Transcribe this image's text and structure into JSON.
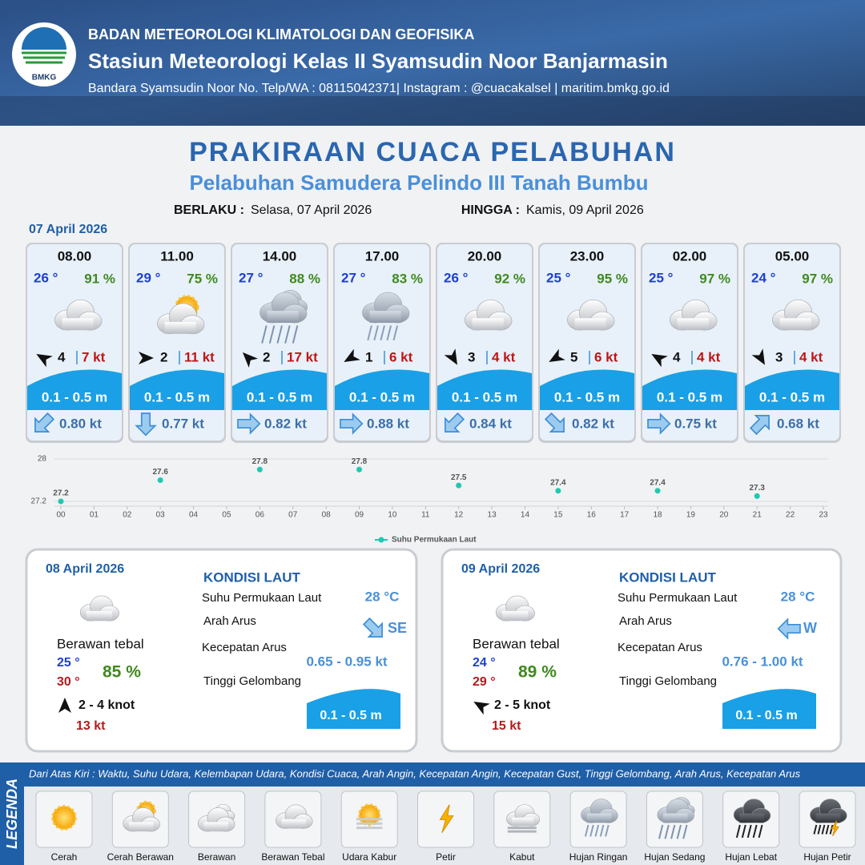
{
  "header": {
    "organization": "BADAN METEOROLOGI KLIMATOLOGI DAN GEOFISIKA",
    "station": "Stasiun Meteorologi Kelas II Syamsudin Noor Banjarmasin",
    "contact": "Bandara Syamsudin Noor No. Telp/WA : 08115042371| Instagram : @cuacakalsel | maritim.bmkg.go.id",
    "logo_text": "BMKG"
  },
  "title": "PRAKIRAAN CUACA PELABUHAN",
  "subtitle": "Pelabuhan Samudera Pelindo III Tanah Bumbu",
  "validity": {
    "from_label": "BERLAKU :",
    "from": "Selasa, 07 April 2026",
    "until_label": "HINGGA :",
    "until": "Kamis, 09 April 2026"
  },
  "day1_date": "07 April 2026",
  "forecasts": [
    {
      "time": "08.00",
      "temp": "26 °",
      "humidity": "91 %",
      "wind": "4",
      "gust": "7 kt",
      "wave": "0.1 - 0.5 m",
      "current": "0.80 kt"
    },
    {
      "time": "11.00",
      "temp": "29 °",
      "humidity": "75 %",
      "wind": "2",
      "gust": "11 kt",
      "wave": "0.1 - 0.5 m",
      "current": "0.77 kt"
    },
    {
      "time": "14.00",
      "temp": "27 °",
      "humidity": "88 %",
      "wind": "2",
      "gust": "17 kt",
      "wave": "0.1 - 0.5 m",
      "current": "0.82 kt"
    },
    {
      "time": "17.00",
      "temp": "27 °",
      "humidity": "83 %",
      "wind": "1",
      "gust": "6 kt",
      "wave": "0.1 - 0.5 m",
      "current": "0.88 kt"
    },
    {
      "time": "20.00",
      "temp": "26 °",
      "humidity": "92 %",
      "wind": "3",
      "gust": "4 kt",
      "wave": "0.1 - 0.5 m",
      "current": "0.84 kt"
    },
    {
      "time": "23.00",
      "temp": "25 °",
      "humidity": "95 %",
      "wind": "5",
      "gust": "6 kt",
      "wave": "0.1 - 0.5 m",
      "current": "0.82 kt"
    },
    {
      "time": "02.00",
      "temp": "25 °",
      "humidity": "97 %",
      "wind": "4",
      "gust": "4 kt",
      "wave": "0.1 - 0.5 m",
      "current": "0.75 kt"
    },
    {
      "time": "05.00",
      "temp": "24 °",
      "humidity": "97 %",
      "wind": "3",
      "gust": "4 kt",
      "wave": "0.1 - 0.5 m",
      "current": "0.68 kt"
    }
  ],
  "chart_data": {
    "type": "line",
    "x": [
      0,
      3,
      6,
      9,
      12,
      15,
      18,
      21
    ],
    "series": [
      {
        "name": "Suhu Permukaan Laut",
        "color": "#1fc9b0",
        "values": [
          27.2,
          27.6,
          27.8,
          27.8,
          27.5,
          27.4,
          27.4,
          27.3
        ]
      }
    ],
    "xlim": [
      0,
      23
    ],
    "ylim": [
      27.2,
      28
    ],
    "yticks": [
      27.2,
      28
    ],
    "xticks": [
      {
        "value": 0,
        "label": "00"
      },
      {
        "value": 1,
        "label": "01"
      },
      {
        "value": 2,
        "label": "02"
      },
      {
        "value": 3,
        "label": "03"
      },
      {
        "value": 4,
        "label": "04"
      },
      {
        "value": 5,
        "label": "05"
      },
      {
        "value": 6,
        "label": "06"
      },
      {
        "value": 7,
        "label": "07"
      },
      {
        "value": 8,
        "label": "08"
      },
      {
        "value": 9,
        "label": "09"
      },
      10,
      11,
      12,
      13,
      14,
      15,
      16,
      17,
      18,
      19,
      20,
      21,
      22,
      23
    ],
    "grid": true,
    "legend": "bottom"
  },
  "daily": [
    {
      "date": "08 April 2026",
      "condition": "Berawan tebal",
      "temp_min": "25 °",
      "temp_max": "30 °",
      "humidity": "85 %",
      "wind": "2  - 4 knot",
      "gust": "13 kt",
      "sea_title": "KONDISI LAUT",
      "sst_label": "Suhu Permukaan Laut",
      "sst": "28 °C",
      "current_dir_label": "Arah Arus",
      "current_dir": "SE",
      "current_speed_label": "Kecepatan Arus",
      "current_speed": "0.65 - 0.95 kt",
      "wave_label": "Tinggi Gelombang",
      "wave": "0.1 - 0.5 m"
    },
    {
      "date": "09 April 2026",
      "condition": "Berawan tebal",
      "temp_min": "24 °",
      "temp_max": "29 °",
      "humidity": "89 %",
      "wind": "2  - 5 knot",
      "gust": "15 kt",
      "sea_title": "KONDISI LAUT",
      "sst_label": "Suhu Permukaan Laut",
      "sst": "28 °C",
      "current_dir_label": "Arah Arus",
      "current_dir": "W",
      "current_speed_label": "Kecepatan Arus",
      "current_speed": "0.76 - 1.00 kt",
      "wave_label": "Tinggi Gelombang",
      "wave": "0.1 - 0.5 m"
    }
  ],
  "legend": {
    "label": "LEGENDA",
    "description": "Dari Atas Kiri : Waktu, Suhu Udara, Kelembapan Udara, Kondisi Cuaca, Arah Angin, Kecepatan Angin, Kecepatan Gust, Tinggi Gelombang, Arah Arus, Kecepatan Arus",
    "items": [
      "Cerah",
      "Cerah Berawan",
      "Berawan",
      "Berawan Tebal",
      "Udara Kabur",
      "Petir",
      "Kabut",
      "Hujan Ringan",
      "Hujan Sedang",
      "Hujan Lebat",
      "Hujan Petir"
    ]
  }
}
